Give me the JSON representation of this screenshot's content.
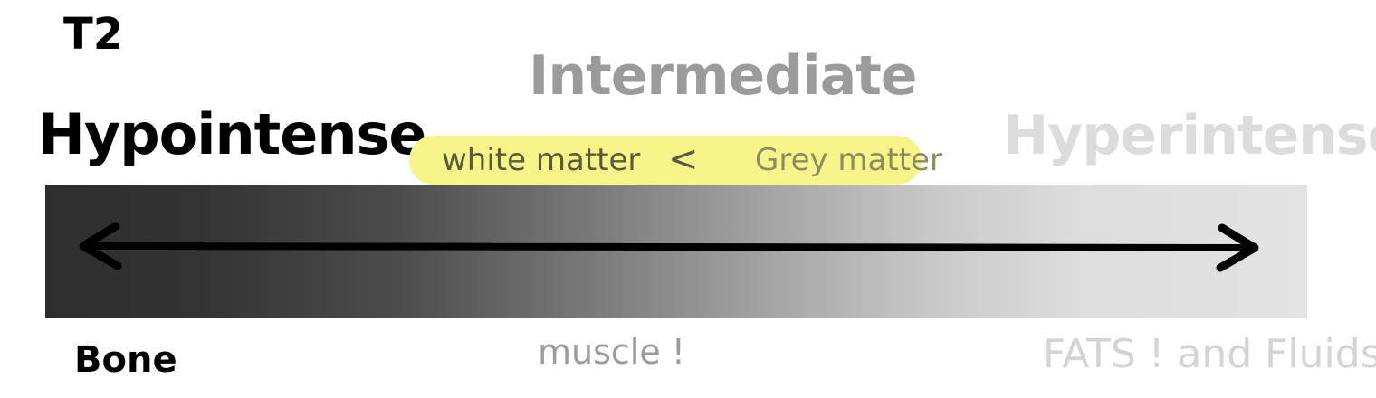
{
  "sequence_label": "T2",
  "scale": {
    "low_label": "Hypointense",
    "mid_label": "Intermediate",
    "high_label": "Hyperintense",
    "gradient_from": "#2e2e2e",
    "gradient_to": "#e3e3e3",
    "arrow": "double-headed"
  },
  "highlight": {
    "left_text": "white matter",
    "comparator": "<",
    "right_text": "Grey matter",
    "color": "#f7f58a"
  },
  "examples": {
    "low": "Bone",
    "mid": "muscle !",
    "high": "FATS ! and Fluids !"
  },
  "colors": {
    "low_text": "#000000",
    "mid_text": "#9b9b9b",
    "high_text": "#dcdcdc"
  }
}
